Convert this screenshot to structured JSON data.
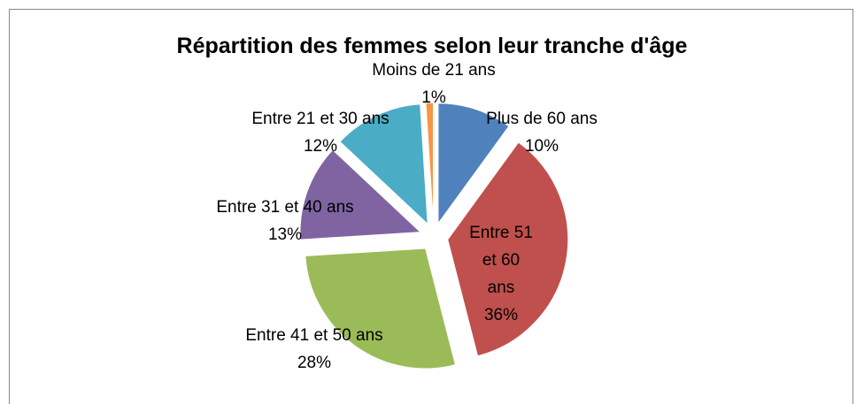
{
  "chart_data": {
    "type": "pie",
    "title": "Répartition des femmes selon leur  tranche d'âge",
    "categories": [
      "Plus de 60 ans",
      "Entre 51 et 60 ans",
      "Entre 41 et 50 ans",
      "Entre 31 et 40 ans",
      "Entre 21 et 30 ans",
      "Moins de 21 ans"
    ],
    "values": [
      10,
      36,
      28,
      13,
      12,
      1
    ],
    "value_labels": [
      "10%",
      "36%",
      "28%",
      "13%",
      "12%",
      "1%"
    ],
    "colors": [
      "#4f81bd",
      "#c0504d",
      "#9bbb59",
      "#8064a2",
      "#4bacc6",
      "#f79646"
    ]
  }
}
